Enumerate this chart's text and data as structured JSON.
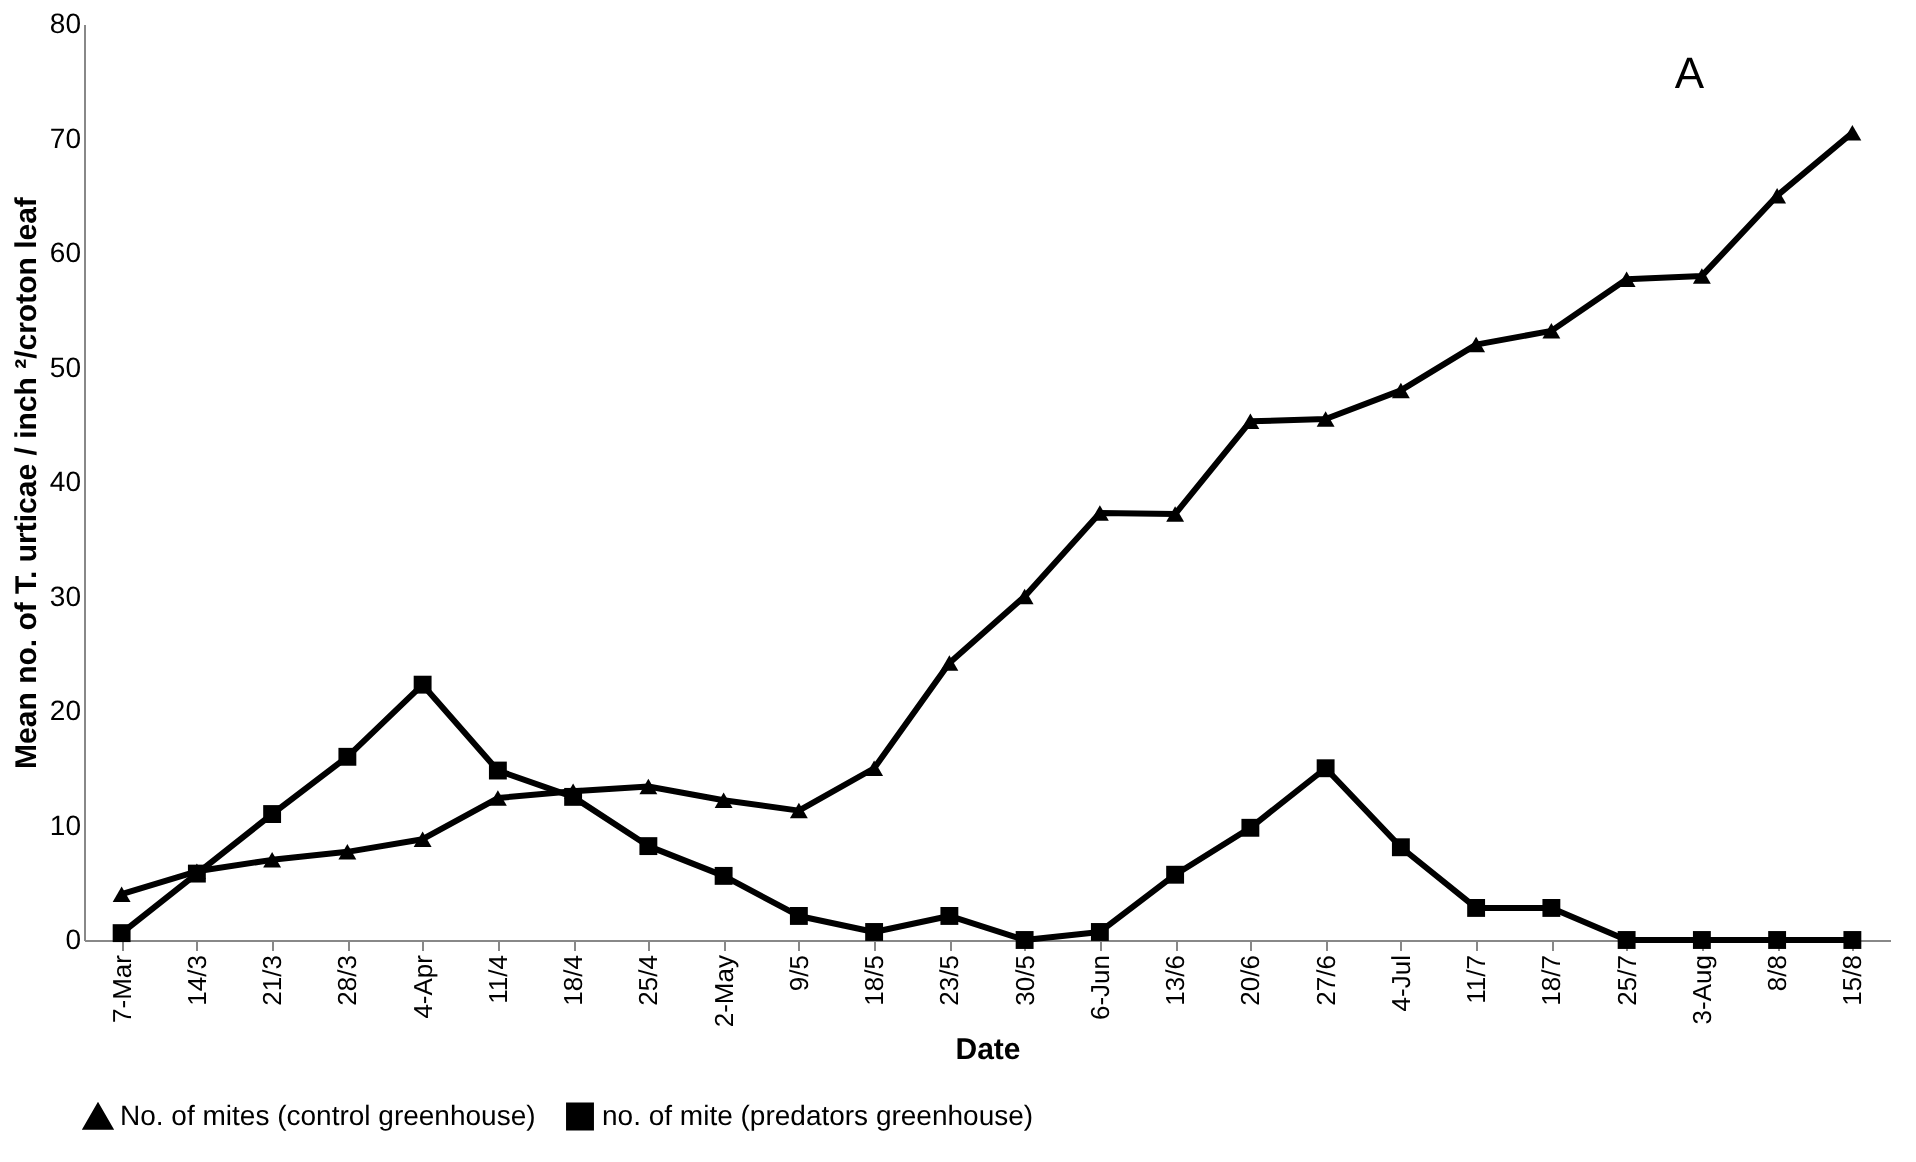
{
  "chart_data": {
    "type": "line",
    "xlabel": "Date",
    "ylabel": "Mean no. of T. urticae / inch ²/croton leaf",
    "categories": [
      "7-Mar",
      "14/3",
      "21/3",
      "28/3",
      "4-Apr",
      "11/4",
      "18/4",
      "25/4",
      "2-May",
      "9/5",
      "18/5",
      "23/5",
      "30/5",
      "6-Jun",
      "13/6",
      "20/6",
      "27/6",
      "4-Jul",
      "11/7",
      "18/7",
      "25/7",
      "3-Aug",
      "8/8",
      "15/8"
    ],
    "series": [
      {
        "name": "No. of mites (control greenhouse)",
        "color": "#000000",
        "marker": "triangle",
        "values": [
          4,
          6,
          7,
          7.7,
          8.8,
          12.4,
          13,
          13.4,
          12.2,
          11.3,
          15,
          24.2,
          30,
          37.3,
          37.2,
          45.3,
          45.5,
          48,
          52,
          53.2,
          57.7,
          58,
          65,
          70.5
        ]
      },
      {
        "name": "no. of mite (predators greenhouse)",
        "color": "#000000",
        "marker": "square",
        "values": [
          0.6,
          5.8,
          11,
          16,
          22.3,
          14.8,
          12.5,
          8.2,
          5.6,
          2.1,
          0.7,
          2.1,
          0,
          0.7,
          5.7,
          9.8,
          15,
          8.1,
          2.8,
          2.8,
          0,
          0,
          0,
          0
        ]
      }
    ],
    "ylim": [
      0,
      80
    ],
    "yticks": [
      0,
      10,
      20,
      30,
      40,
      50,
      60,
      70,
      80
    ],
    "grid": false,
    "legend": "bottom",
    "line_style": "solid",
    "annotations": [
      "A"
    ]
  }
}
